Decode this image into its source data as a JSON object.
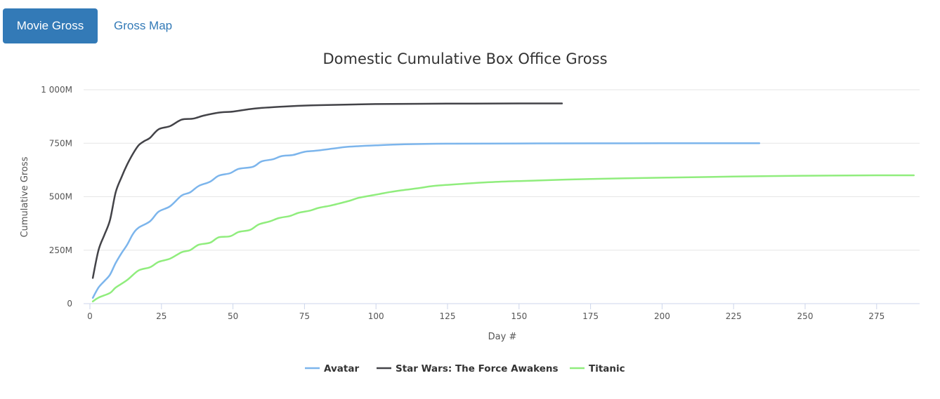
{
  "tabs": [
    {
      "label": "Movie Gross",
      "active": true
    },
    {
      "label": "Gross Map",
      "active": false
    }
  ],
  "colors": {
    "tab_active_bg": "#337ab7",
    "tab_link": "#337ab7",
    "grid": "#e6e6e6",
    "axis": "#ccd6eb"
  },
  "chart_data": {
    "type": "line",
    "title": "Domestic Cumulative Box Office Gross",
    "xlabel": "Day #",
    "ylabel": "Cumulative Gross",
    "xlim": [
      0,
      290
    ],
    "ylim": [
      0,
      1000
    ],
    "x_ticks": [
      0,
      25,
      50,
      75,
      100,
      125,
      150,
      175,
      200,
      225,
      250,
      275
    ],
    "x_tick_labels": [
      "0",
      "25",
      "50",
      "75",
      "100",
      "125",
      "150",
      "175",
      "200",
      "225",
      "250",
      "275"
    ],
    "y_ticks": [
      0,
      250,
      500,
      750,
      1000
    ],
    "y_tick_labels": [
      "0",
      "250M",
      "500M",
      "750M",
      "1 000M"
    ],
    "grid": true,
    "legend_position": "bottom-center",
    "series": [
      {
        "name": "Avatar",
        "color": "#7cb5ec",
        "points": [
          [
            1,
            27
          ],
          [
            3,
            75
          ],
          [
            5,
            105
          ],
          [
            7,
            135
          ],
          [
            9,
            190
          ],
          [
            11,
            235
          ],
          [
            13,
            275
          ],
          [
            15,
            325
          ],
          [
            17,
            355
          ],
          [
            21,
            385
          ],
          [
            24,
            430
          ],
          [
            28,
            455
          ],
          [
            32,
            505
          ],
          [
            35,
            520
          ],
          [
            38,
            550
          ],
          [
            42,
            570
          ],
          [
            45,
            598
          ],
          [
            49,
            610
          ],
          [
            52,
            630
          ],
          [
            57,
            640
          ],
          [
            60,
            665
          ],
          [
            64,
            675
          ],
          [
            67,
            690
          ],
          [
            71,
            695
          ],
          [
            75,
            710
          ],
          [
            79,
            715
          ],
          [
            85,
            725
          ],
          [
            90,
            733
          ],
          [
            100,
            740
          ],
          [
            110,
            745
          ],
          [
            125,
            748
          ],
          [
            150,
            749
          ],
          [
            200,
            750
          ],
          [
            234,
            750
          ]
        ]
      },
      {
        "name": "Star Wars: The Force Awakens",
        "color": "#434348",
        "points": [
          [
            1,
            120
          ],
          [
            3,
            250
          ],
          [
            5,
            320
          ],
          [
            7,
            390
          ],
          [
            9,
            520
          ],
          [
            11,
            590
          ],
          [
            13,
            650
          ],
          [
            15,
            700
          ],
          [
            17,
            740
          ],
          [
            19,
            760
          ],
          [
            21,
            775
          ],
          [
            24,
            815
          ],
          [
            28,
            830
          ],
          [
            32,
            860
          ],
          [
            36,
            865
          ],
          [
            40,
            880
          ],
          [
            45,
            893
          ],
          [
            50,
            898
          ],
          [
            55,
            908
          ],
          [
            60,
            915
          ],
          [
            70,
            923
          ],
          [
            80,
            928
          ],
          [
            100,
            933
          ],
          [
            125,
            935
          ],
          [
            150,
            936
          ],
          [
            165,
            936
          ]
        ]
      },
      {
        "name": "Titanic",
        "color": "#90ed7d",
        "points": [
          [
            1,
            10
          ],
          [
            3,
            28
          ],
          [
            7,
            50
          ],
          [
            9,
            75
          ],
          [
            13,
            110
          ],
          [
            17,
            155
          ],
          [
            21,
            170
          ],
          [
            24,
            195
          ],
          [
            28,
            210
          ],
          [
            32,
            240
          ],
          [
            35,
            250
          ],
          [
            38,
            275
          ],
          [
            42,
            285
          ],
          [
            45,
            310
          ],
          [
            49,
            315
          ],
          [
            52,
            335
          ],
          [
            56,
            345
          ],
          [
            59,
            370
          ],
          [
            63,
            385
          ],
          [
            66,
            400
          ],
          [
            70,
            410
          ],
          [
            73,
            425
          ],
          [
            77,
            435
          ],
          [
            80,
            448
          ],
          [
            84,
            458
          ],
          [
            87,
            468
          ],
          [
            91,
            482
          ],
          [
            94,
            495
          ],
          [
            98,
            505
          ],
          [
            101,
            512
          ],
          [
            105,
            522
          ],
          [
            109,
            530
          ],
          [
            115,
            540
          ],
          [
            120,
            550
          ],
          [
            130,
            560
          ],
          [
            140,
            568
          ],
          [
            150,
            573
          ],
          [
            175,
            583
          ],
          [
            200,
            589
          ],
          [
            225,
            594
          ],
          [
            250,
            598
          ],
          [
            275,
            600
          ],
          [
            288,
            600
          ]
        ]
      }
    ]
  }
}
